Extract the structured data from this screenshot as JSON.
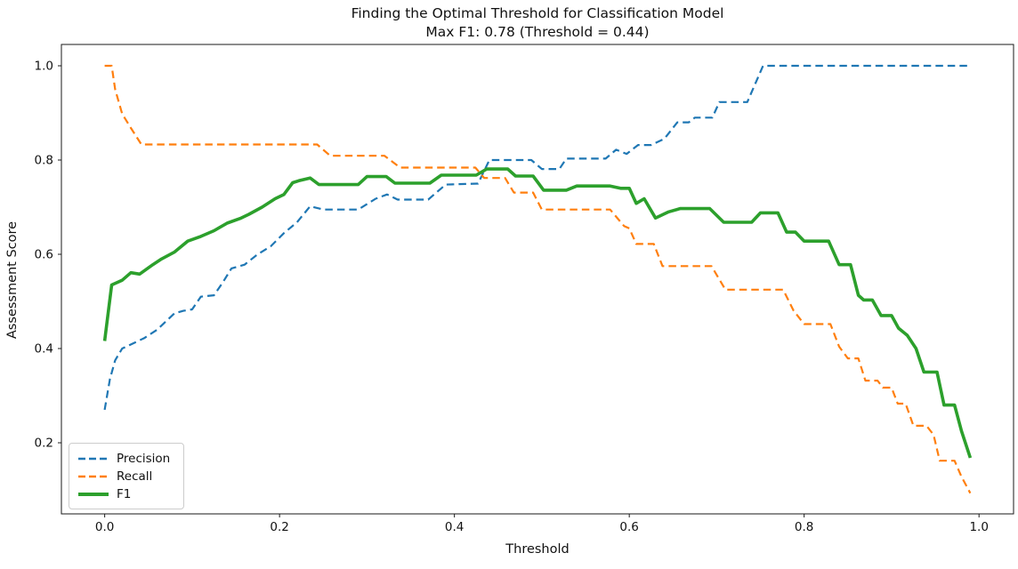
{
  "chart_data": {
    "type": "line",
    "title": "Finding the Optimal Threshold for Classification Model",
    "subtitle": "Max F1: 0.78 (Threshold = 0.44)",
    "xlabel": "Threshold",
    "ylabel": "Assessment Score",
    "max_f1": 0.78,
    "max_f1_threshold": 0.44,
    "xlim": [
      -0.0495,
      1.0395
    ],
    "ylim": [
      0.0491,
      1.0453
    ],
    "x_ticks": [
      0.0,
      0.2,
      0.4,
      0.6,
      0.8,
      1.0
    ],
    "x_tick_labels": [
      "0.0",
      "0.2",
      "0.4",
      "0.6",
      "0.8",
      "1.0"
    ],
    "y_ticks": [
      0.2,
      0.4,
      0.6,
      0.8,
      1.0
    ],
    "y_tick_labels": [
      "0.2",
      "0.4",
      "0.6",
      "0.8",
      "1.0"
    ],
    "grid": false,
    "legend_position": "lower-left",
    "series": [
      {
        "name": "Precision",
        "color": "#1f77b4",
        "style": "dashed",
        "line_width": 2.2,
        "points": [
          [
            0.0,
            0.27
          ],
          [
            0.006,
            0.335
          ],
          [
            0.012,
            0.375
          ],
          [
            0.02,
            0.4
          ],
          [
            0.045,
            0.422
          ],
          [
            0.06,
            0.44
          ],
          [
            0.08,
            0.475
          ],
          [
            0.09,
            0.48
          ],
          [
            0.1,
            0.483
          ],
          [
            0.11,
            0.51
          ],
          [
            0.125,
            0.513
          ],
          [
            0.135,
            0.54
          ],
          [
            0.145,
            0.57
          ],
          [
            0.16,
            0.578
          ],
          [
            0.175,
            0.6
          ],
          [
            0.19,
            0.617
          ],
          [
            0.205,
            0.645
          ],
          [
            0.22,
            0.668
          ],
          [
            0.235,
            0.702
          ],
          [
            0.25,
            0.695
          ],
          [
            0.29,
            0.695
          ],
          [
            0.31,
            0.718
          ],
          [
            0.323,
            0.727
          ],
          [
            0.335,
            0.716
          ],
          [
            0.37,
            0.716
          ],
          [
            0.39,
            0.748
          ],
          [
            0.427,
            0.75
          ],
          [
            0.44,
            0.8
          ],
          [
            0.488,
            0.8
          ],
          [
            0.5,
            0.781
          ],
          [
            0.52,
            0.781
          ],
          [
            0.528,
            0.803
          ],
          [
            0.573,
            0.803
          ],
          [
            0.585,
            0.822
          ],
          [
            0.597,
            0.813
          ],
          [
            0.61,
            0.832
          ],
          [
            0.625,
            0.832
          ],
          [
            0.64,
            0.845
          ],
          [
            0.655,
            0.88
          ],
          [
            0.668,
            0.88
          ],
          [
            0.675,
            0.89
          ],
          [
            0.695,
            0.89
          ],
          [
            0.703,
            0.923
          ],
          [
            0.735,
            0.923
          ],
          [
            0.753,
            1.0
          ],
          [
            0.99,
            1.0
          ]
        ]
      },
      {
        "name": "Recall",
        "color": "#ff7f0e",
        "style": "dashed",
        "line_width": 2.2,
        "points": [
          [
            0.0,
            1.0
          ],
          [
            0.008,
            1.0
          ],
          [
            0.012,
            0.95
          ],
          [
            0.02,
            0.898
          ],
          [
            0.03,
            0.868
          ],
          [
            0.042,
            0.833
          ],
          [
            0.243,
            0.833
          ],
          [
            0.258,
            0.809
          ],
          [
            0.32,
            0.809
          ],
          [
            0.338,
            0.784
          ],
          [
            0.424,
            0.784
          ],
          [
            0.434,
            0.762
          ],
          [
            0.458,
            0.762
          ],
          [
            0.468,
            0.731
          ],
          [
            0.49,
            0.731
          ],
          [
            0.5,
            0.695
          ],
          [
            0.578,
            0.695
          ],
          [
            0.594,
            0.66
          ],
          [
            0.6,
            0.655
          ],
          [
            0.608,
            0.622
          ],
          [
            0.628,
            0.622
          ],
          [
            0.638,
            0.575
          ],
          [
            0.694,
            0.575
          ],
          [
            0.71,
            0.525
          ],
          [
            0.776,
            0.525
          ],
          [
            0.788,
            0.48
          ],
          [
            0.8,
            0.452
          ],
          [
            0.83,
            0.452
          ],
          [
            0.84,
            0.404
          ],
          [
            0.85,
            0.379
          ],
          [
            0.862,
            0.379
          ],
          [
            0.87,
            0.332
          ],
          [
            0.884,
            0.332
          ],
          [
            0.89,
            0.317
          ],
          [
            0.9,
            0.317
          ],
          [
            0.907,
            0.283
          ],
          [
            0.916,
            0.283
          ],
          [
            0.925,
            0.236
          ],
          [
            0.94,
            0.236
          ],
          [
            0.948,
            0.217
          ],
          [
            0.955,
            0.162
          ],
          [
            0.972,
            0.162
          ],
          [
            0.98,
            0.128
          ],
          [
            0.99,
            0.093
          ]
        ]
      },
      {
        "name": "F1",
        "color": "#2ca02c",
        "style": "solid",
        "line_width": 3.6,
        "points": [
          [
            0.0,
            0.416
          ],
          [
            0.008,
            0.535
          ],
          [
            0.02,
            0.545
          ],
          [
            0.03,
            0.561
          ],
          [
            0.04,
            0.558
          ],
          [
            0.055,
            0.578
          ],
          [
            0.065,
            0.59
          ],
          [
            0.08,
            0.605
          ],
          [
            0.095,
            0.628
          ],
          [
            0.11,
            0.638
          ],
          [
            0.125,
            0.65
          ],
          [
            0.14,
            0.666
          ],
          [
            0.155,
            0.676
          ],
          [
            0.165,
            0.685
          ],
          [
            0.18,
            0.7
          ],
          [
            0.195,
            0.718
          ],
          [
            0.205,
            0.727
          ],
          [
            0.215,
            0.752
          ],
          [
            0.222,
            0.756
          ],
          [
            0.235,
            0.762
          ],
          [
            0.245,
            0.748
          ],
          [
            0.29,
            0.748
          ],
          [
            0.3,
            0.765
          ],
          [
            0.322,
            0.765
          ],
          [
            0.332,
            0.751
          ],
          [
            0.372,
            0.751
          ],
          [
            0.385,
            0.768
          ],
          [
            0.425,
            0.768
          ],
          [
            0.437,
            0.781
          ],
          [
            0.461,
            0.781
          ],
          [
            0.47,
            0.766
          ],
          [
            0.49,
            0.766
          ],
          [
            0.502,
            0.736
          ],
          [
            0.528,
            0.736
          ],
          [
            0.54,
            0.745
          ],
          [
            0.578,
            0.745
          ],
          [
            0.59,
            0.74
          ],
          [
            0.6,
            0.74
          ],
          [
            0.608,
            0.708
          ],
          [
            0.617,
            0.718
          ],
          [
            0.63,
            0.677
          ],
          [
            0.645,
            0.69
          ],
          [
            0.658,
            0.697
          ],
          [
            0.692,
            0.697
          ],
          [
            0.708,
            0.668
          ],
          [
            0.74,
            0.668
          ],
          [
            0.75,
            0.688
          ],
          [
            0.77,
            0.688
          ],
          [
            0.78,
            0.647
          ],
          [
            0.79,
            0.647
          ],
          [
            0.8,
            0.628
          ],
          [
            0.828,
            0.628
          ],
          [
            0.84,
            0.578
          ],
          [
            0.853,
            0.578
          ],
          [
            0.862,
            0.513
          ],
          [
            0.868,
            0.503
          ],
          [
            0.878,
            0.503
          ],
          [
            0.888,
            0.47
          ],
          [
            0.9,
            0.47
          ],
          [
            0.908,
            0.443
          ],
          [
            0.918,
            0.428
          ],
          [
            0.928,
            0.4
          ],
          [
            0.937,
            0.35
          ],
          [
            0.952,
            0.35
          ],
          [
            0.96,
            0.28
          ],
          [
            0.972,
            0.28
          ],
          [
            0.98,
            0.225
          ],
          [
            0.99,
            0.168
          ]
        ]
      }
    ]
  }
}
